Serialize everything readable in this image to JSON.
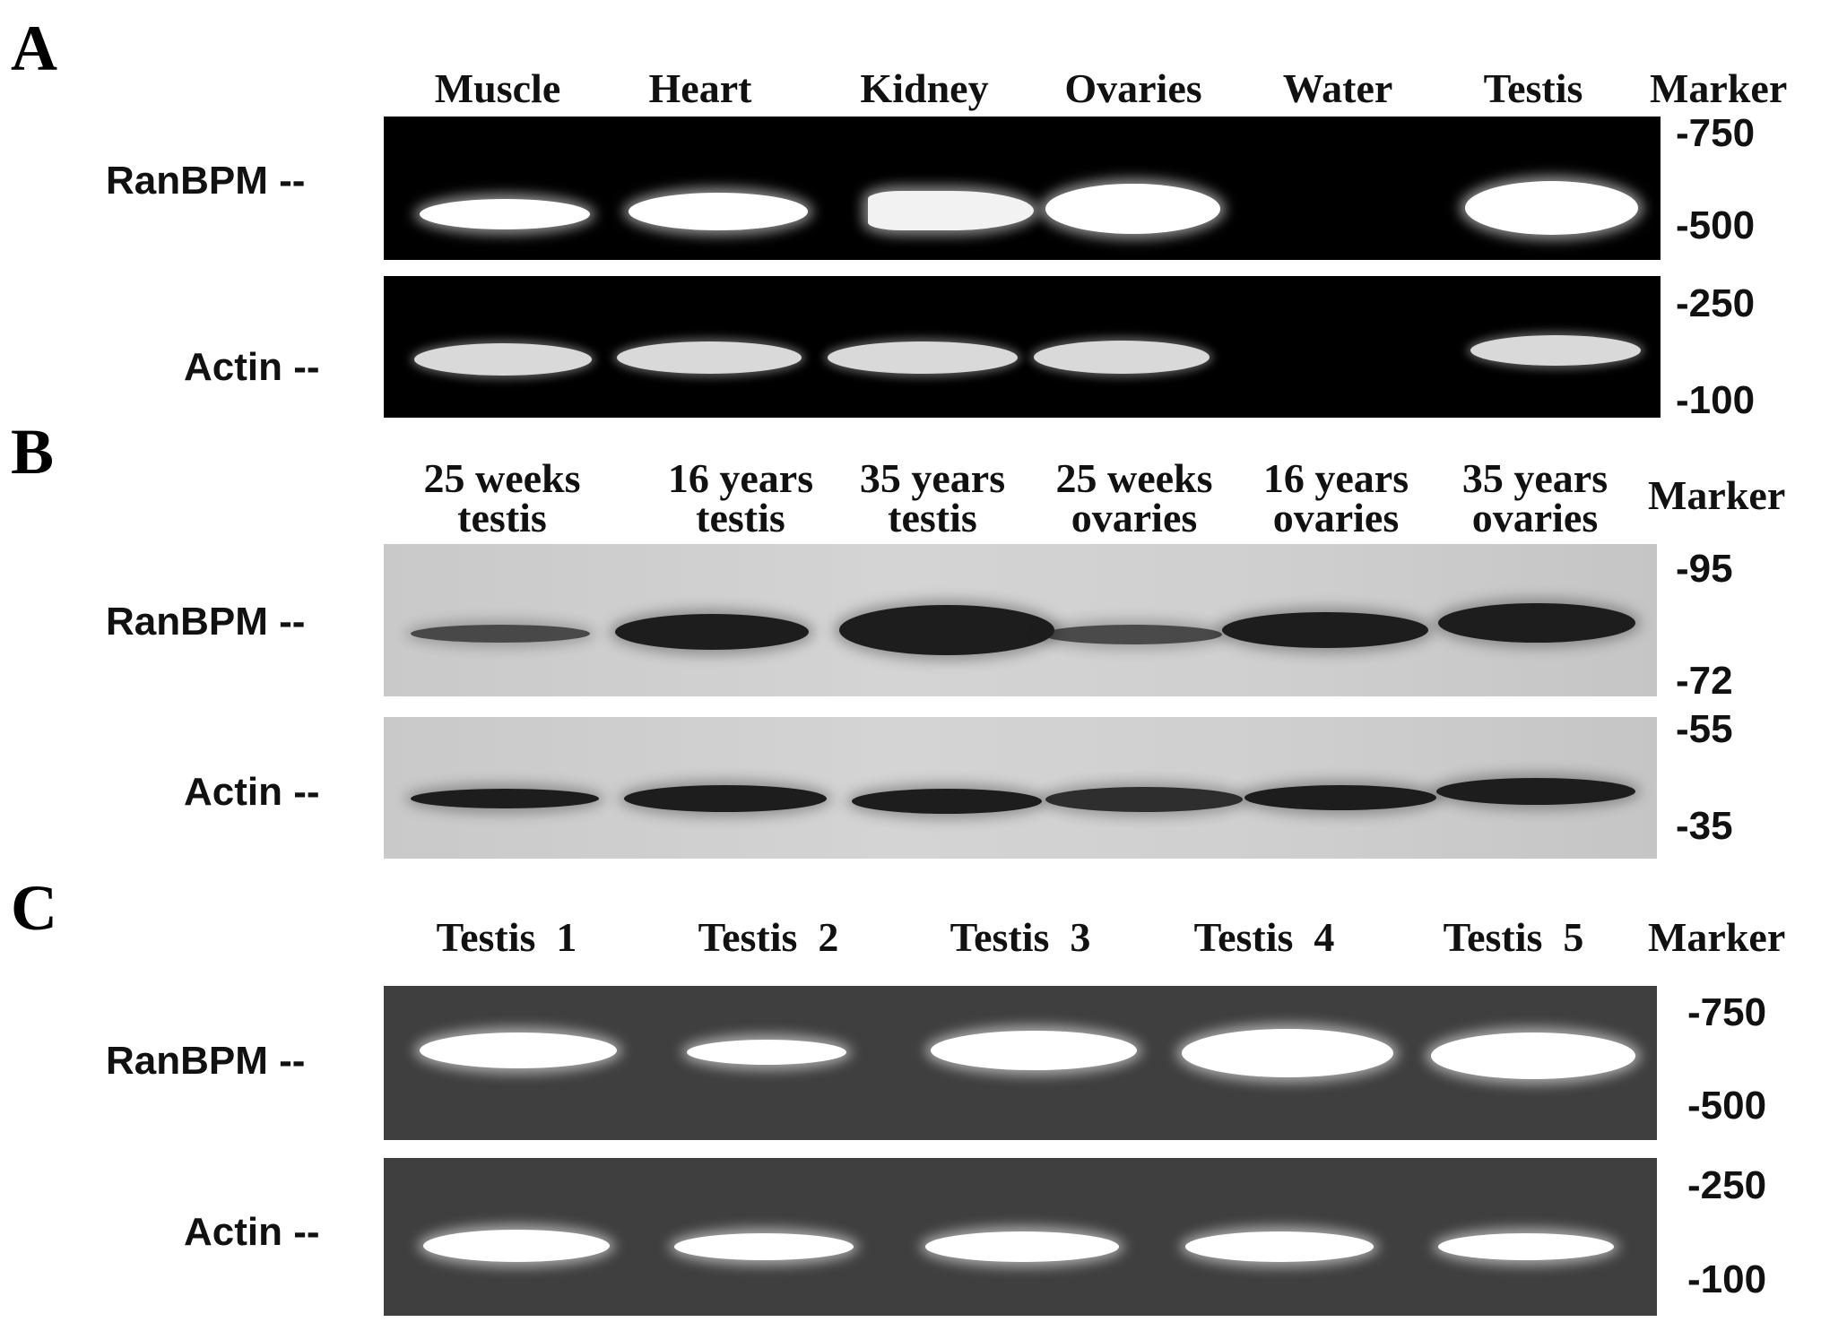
{
  "panels": {
    "a": {
      "letter": "A",
      "lanes": [
        "Muscle",
        "Heart",
        "Kidney",
        "Ovaries",
        "Water",
        "Testis"
      ],
      "marker_header": "Marker",
      "rows": {
        "top": "RanBPM --",
        "bottom": "Actin --"
      },
      "markers": [
        "-750",
        "-500",
        "-250",
        "-100"
      ]
    },
    "b": {
      "letter": "B",
      "lanes": [
        {
          "l1": "25 weeks",
          "l2": "testis"
        },
        {
          "l1": "16 years",
          "l2": "testis"
        },
        {
          "l1": "35 years",
          "l2": "testis"
        },
        {
          "l1": "25 weeks",
          "l2": "ovaries"
        },
        {
          "l1": "16 years",
          "l2": "ovaries"
        },
        {
          "l1": "35 years",
          "l2": "ovaries"
        }
      ],
      "marker_header": "Marker",
      "rows": {
        "top": "RanBPM --",
        "bottom": "Actin --"
      },
      "markers": [
        "-95",
        "-72",
        "-55",
        "-35"
      ]
    },
    "c": {
      "letter": "C",
      "lanes": [
        "Testis  1",
        "Testis  2",
        "Testis  3",
        "Testis  4",
        "Testis  5"
      ],
      "marker_header": "Marker",
      "rows": {
        "top": "RanBPM --",
        "bottom": "Actin --"
      },
      "markers": [
        "-750",
        "-500",
        "-250",
        "-100"
      ]
    }
  }
}
